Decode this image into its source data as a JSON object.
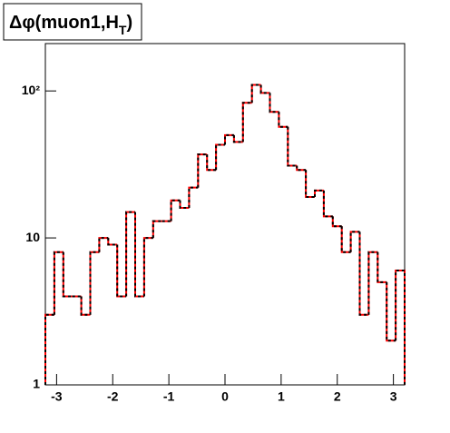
{
  "chart_data": {
    "type": "histogram",
    "title": "Δφ(muon1,H",
    "title_subscript": "T",
    "title_end": ")",
    "bins": [
      -3.2,
      -3.04,
      -2.88,
      -2.72,
      -2.56,
      -2.4,
      -2.24,
      -2.08,
      -1.92,
      -1.76,
      -1.6,
      -1.44,
      -1.28,
      -1.12,
      -0.96,
      -0.8,
      -0.64,
      -0.48,
      -0.32,
      -0.16,
      0,
      0.16,
      0.32,
      0.48,
      0.64,
      0.8,
      0.96,
      1.12,
      1.28,
      1.44,
      1.6,
      1.76,
      1.92,
      2.08,
      2.24,
      2.4,
      2.56,
      2.72,
      2.88,
      3.04,
      3.2
    ],
    "values": [
      3,
      8,
      4,
      4,
      3,
      8,
      10,
      9,
      4,
      15,
      4,
      10,
      13,
      13,
      18,
      16,
      22,
      37,
      29,
      43,
      50,
      45,
      83,
      110,
      97,
      72,
      57,
      31,
      29,
      19,
      21,
      14,
      12,
      8,
      11,
      3,
      8,
      5,
      2,
      6
    ],
    "color": "#ff0000",
    "overlay_color": "#000000",
    "xlim": [
      -3.2,
      3.2
    ],
    "xticks": [
      -3,
      -2,
      -1,
      0,
      1,
      2,
      3
    ],
    "ylim": [
      1,
      210
    ],
    "yticks": [
      1,
      10,
      {
        "value": 100,
        "label": "10²"
      }
    ],
    "log_y": true
  }
}
